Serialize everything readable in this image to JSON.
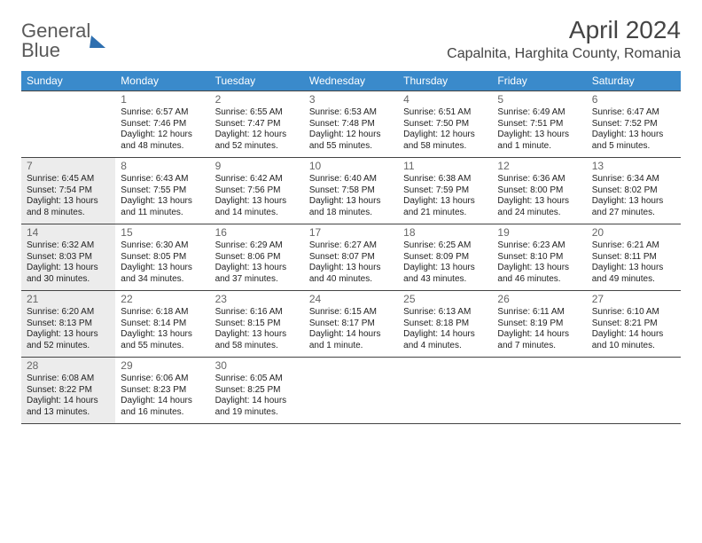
{
  "logo": {
    "line1": "General",
    "line2": "Blue"
  },
  "title": "April 2024",
  "subtitle": "Capalnita, Harghita County, Romania",
  "colors": {
    "header_bg": "#3a8acb",
    "header_text": "#ffffff",
    "shade": "#ececec",
    "border": "#444444",
    "body_text": "#222222",
    "daynum_text": "#666666",
    "logo_gray": "#5a5a5a",
    "logo_blue": "#3a7fc4"
  },
  "fonts": {
    "title_size": 28,
    "subtitle_size": 16,
    "dow_size": 12,
    "daynum_size": 12,
    "body_size": 10
  },
  "days_of_week": [
    "Sunday",
    "Monday",
    "Tuesday",
    "Wednesday",
    "Thursday",
    "Friday",
    "Saturday"
  ],
  "weeks": [
    [
      {
        "blank": true
      },
      {
        "n": "1",
        "sr": "Sunrise: 6:57 AM",
        "ss": "Sunset: 7:46 PM",
        "d1": "Daylight: 12 hours",
        "d2": "and 48 minutes."
      },
      {
        "n": "2",
        "sr": "Sunrise: 6:55 AM",
        "ss": "Sunset: 7:47 PM",
        "d1": "Daylight: 12 hours",
        "d2": "and 52 minutes."
      },
      {
        "n": "3",
        "sr": "Sunrise: 6:53 AM",
        "ss": "Sunset: 7:48 PM",
        "d1": "Daylight: 12 hours",
        "d2": "and 55 minutes."
      },
      {
        "n": "4",
        "sr": "Sunrise: 6:51 AM",
        "ss": "Sunset: 7:50 PM",
        "d1": "Daylight: 12 hours",
        "d2": "and 58 minutes."
      },
      {
        "n": "5",
        "sr": "Sunrise: 6:49 AM",
        "ss": "Sunset: 7:51 PM",
        "d1": "Daylight: 13 hours",
        "d2": "and 1 minute."
      },
      {
        "n": "6",
        "sr": "Sunrise: 6:47 AM",
        "ss": "Sunset: 7:52 PM",
        "d1": "Daylight: 13 hours",
        "d2": "and 5 minutes."
      }
    ],
    [
      {
        "n": "7",
        "sr": "Sunrise: 6:45 AM",
        "ss": "Sunset: 7:54 PM",
        "d1": "Daylight: 13 hours",
        "d2": "and 8 minutes.",
        "shade": true
      },
      {
        "n": "8",
        "sr": "Sunrise: 6:43 AM",
        "ss": "Sunset: 7:55 PM",
        "d1": "Daylight: 13 hours",
        "d2": "and 11 minutes."
      },
      {
        "n": "9",
        "sr": "Sunrise: 6:42 AM",
        "ss": "Sunset: 7:56 PM",
        "d1": "Daylight: 13 hours",
        "d2": "and 14 minutes."
      },
      {
        "n": "10",
        "sr": "Sunrise: 6:40 AM",
        "ss": "Sunset: 7:58 PM",
        "d1": "Daylight: 13 hours",
        "d2": "and 18 minutes."
      },
      {
        "n": "11",
        "sr": "Sunrise: 6:38 AM",
        "ss": "Sunset: 7:59 PM",
        "d1": "Daylight: 13 hours",
        "d2": "and 21 minutes."
      },
      {
        "n": "12",
        "sr": "Sunrise: 6:36 AM",
        "ss": "Sunset: 8:00 PM",
        "d1": "Daylight: 13 hours",
        "d2": "and 24 minutes."
      },
      {
        "n": "13",
        "sr": "Sunrise: 6:34 AM",
        "ss": "Sunset: 8:02 PM",
        "d1": "Daylight: 13 hours",
        "d2": "and 27 minutes."
      }
    ],
    [
      {
        "n": "14",
        "sr": "Sunrise: 6:32 AM",
        "ss": "Sunset: 8:03 PM",
        "d1": "Daylight: 13 hours",
        "d2": "and 30 minutes.",
        "shade": true
      },
      {
        "n": "15",
        "sr": "Sunrise: 6:30 AM",
        "ss": "Sunset: 8:05 PM",
        "d1": "Daylight: 13 hours",
        "d2": "and 34 minutes."
      },
      {
        "n": "16",
        "sr": "Sunrise: 6:29 AM",
        "ss": "Sunset: 8:06 PM",
        "d1": "Daylight: 13 hours",
        "d2": "and 37 minutes."
      },
      {
        "n": "17",
        "sr": "Sunrise: 6:27 AM",
        "ss": "Sunset: 8:07 PM",
        "d1": "Daylight: 13 hours",
        "d2": "and 40 minutes."
      },
      {
        "n": "18",
        "sr": "Sunrise: 6:25 AM",
        "ss": "Sunset: 8:09 PM",
        "d1": "Daylight: 13 hours",
        "d2": "and 43 minutes."
      },
      {
        "n": "19",
        "sr": "Sunrise: 6:23 AM",
        "ss": "Sunset: 8:10 PM",
        "d1": "Daylight: 13 hours",
        "d2": "and 46 minutes."
      },
      {
        "n": "20",
        "sr": "Sunrise: 6:21 AM",
        "ss": "Sunset: 8:11 PM",
        "d1": "Daylight: 13 hours",
        "d2": "and 49 minutes."
      }
    ],
    [
      {
        "n": "21",
        "sr": "Sunrise: 6:20 AM",
        "ss": "Sunset: 8:13 PM",
        "d1": "Daylight: 13 hours",
        "d2": "and 52 minutes.",
        "shade": true
      },
      {
        "n": "22",
        "sr": "Sunrise: 6:18 AM",
        "ss": "Sunset: 8:14 PM",
        "d1": "Daylight: 13 hours",
        "d2": "and 55 minutes."
      },
      {
        "n": "23",
        "sr": "Sunrise: 6:16 AM",
        "ss": "Sunset: 8:15 PM",
        "d1": "Daylight: 13 hours",
        "d2": "and 58 minutes."
      },
      {
        "n": "24",
        "sr": "Sunrise: 6:15 AM",
        "ss": "Sunset: 8:17 PM",
        "d1": "Daylight: 14 hours",
        "d2": "and 1 minute."
      },
      {
        "n": "25",
        "sr": "Sunrise: 6:13 AM",
        "ss": "Sunset: 8:18 PM",
        "d1": "Daylight: 14 hours",
        "d2": "and 4 minutes."
      },
      {
        "n": "26",
        "sr": "Sunrise: 6:11 AM",
        "ss": "Sunset: 8:19 PM",
        "d1": "Daylight: 14 hours",
        "d2": "and 7 minutes."
      },
      {
        "n": "27",
        "sr": "Sunrise: 6:10 AM",
        "ss": "Sunset: 8:21 PM",
        "d1": "Daylight: 14 hours",
        "d2": "and 10 minutes."
      }
    ],
    [
      {
        "n": "28",
        "sr": "Sunrise: 6:08 AM",
        "ss": "Sunset: 8:22 PM",
        "d1": "Daylight: 14 hours",
        "d2": "and 13 minutes.",
        "shade": true
      },
      {
        "n": "29",
        "sr": "Sunrise: 6:06 AM",
        "ss": "Sunset: 8:23 PM",
        "d1": "Daylight: 14 hours",
        "d2": "and 16 minutes."
      },
      {
        "n": "30",
        "sr": "Sunrise: 6:05 AM",
        "ss": "Sunset: 8:25 PM",
        "d1": "Daylight: 14 hours",
        "d2": "and 19 minutes."
      },
      {
        "blank": true
      },
      {
        "blank": true
      },
      {
        "blank": true
      },
      {
        "blank": true
      }
    ]
  ]
}
